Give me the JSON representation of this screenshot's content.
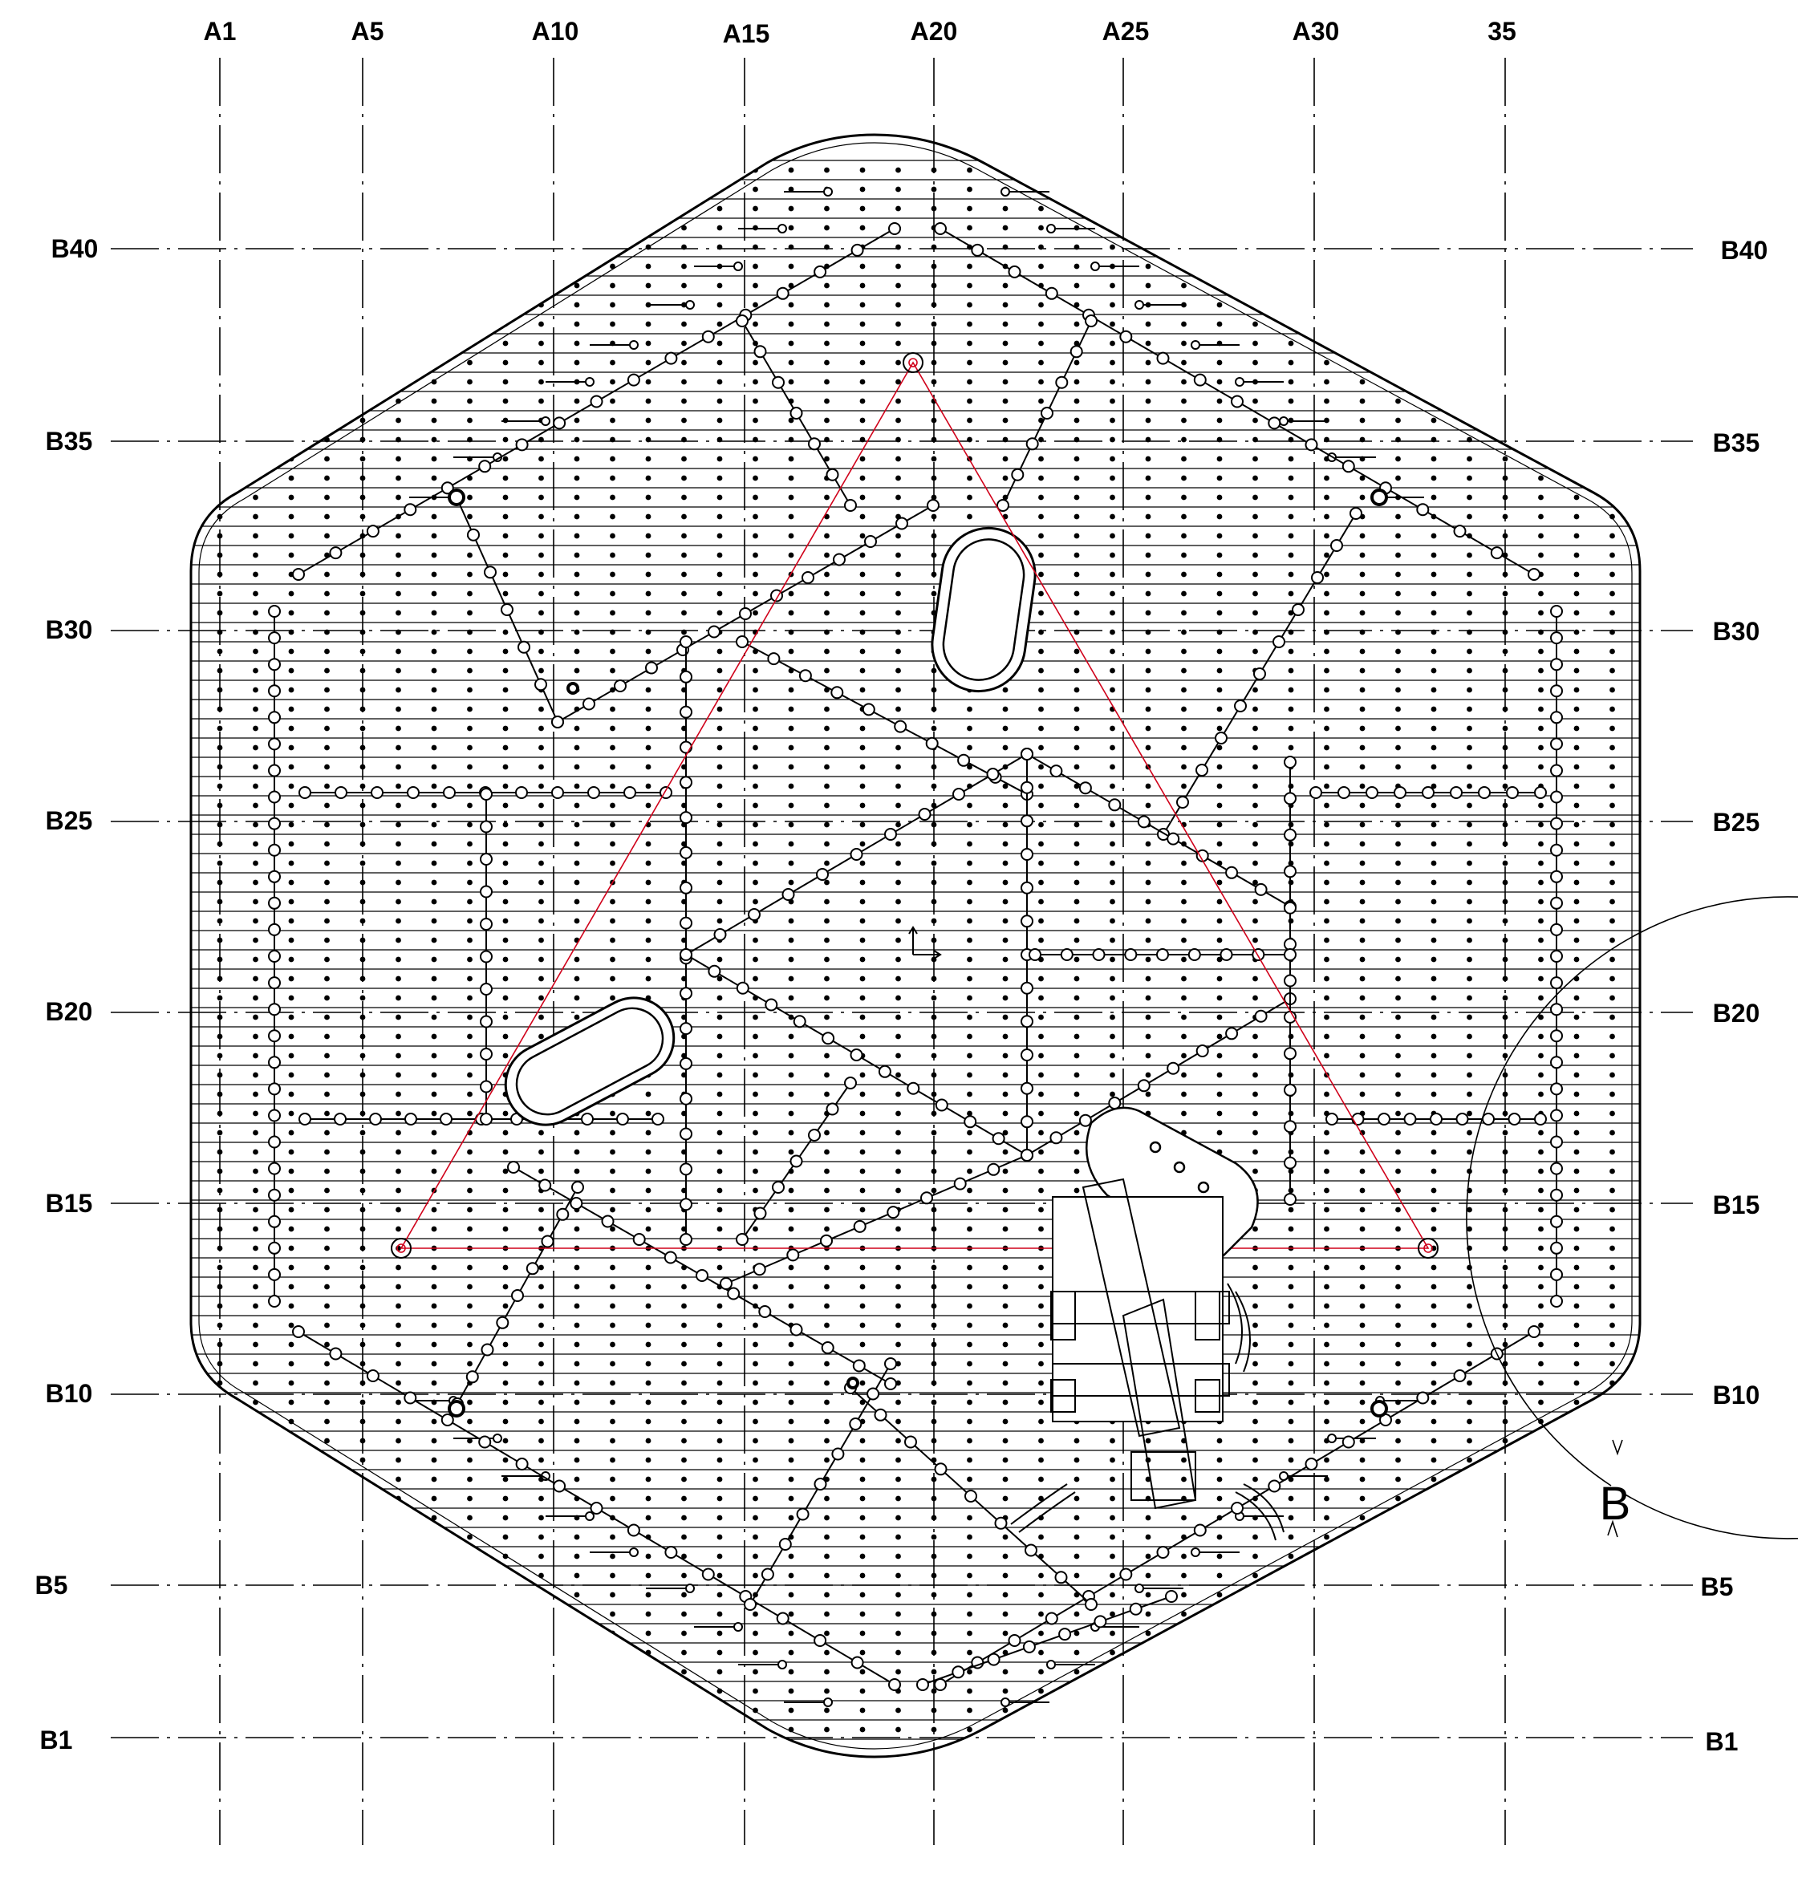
{
  "drawing": {
    "column_labels": [
      "A1",
      "A5",
      "A10",
      "A15",
      "A20",
      "A25",
      "A30",
      "35"
    ],
    "row_labels": [
      "B40",
      "B35",
      "B30",
      "B25",
      "B20",
      "B15",
      "B10",
      "B5",
      "B1"
    ],
    "view_annotation": "B",
    "colors": {
      "line": "#000000",
      "construction": "#d0021b",
      "background": "#ffffff"
    }
  }
}
